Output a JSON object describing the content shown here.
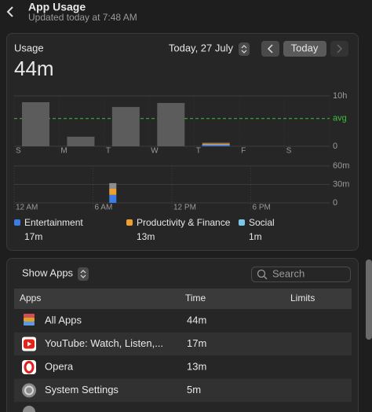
{
  "header": {
    "title": "App Usage",
    "subtitle": "Updated today at 7:48 AM"
  },
  "usage": {
    "label": "Usage",
    "total": "44m",
    "date": "Today, 27 July",
    "today_button": "Today",
    "weekly_chart": {
      "days": [
        "S",
        "M",
        "T",
        "W",
        "T",
        "F",
        "S"
      ],
      "values": [
        525,
        114,
        468,
        516,
        44,
        null,
        null
      ],
      "today_index": 4,
      "color": "#5c5c5c",
      "ylim": [
        0,
        600
      ],
      "yticks": [
        {
          "value": 600,
          "label": "10h"
        },
        0
      ],
      "average": {
        "value": 330,
        "label": "avg",
        "color": "#3fbf3f"
      }
    },
    "hourly_chart": {
      "xlim": [
        0,
        24
      ],
      "xticks": [
        {
          "value": 0,
          "label": "12 AM"
        },
        {
          "value": 6,
          "label": "6 AM"
        },
        {
          "value": 12,
          "label": "12 PM"
        },
        {
          "value": 18,
          "label": "6 PM"
        }
      ],
      "ylim": [
        0,
        60
      ],
      "yticks": [
        {
          "value": 60,
          "label": "60m"
        },
        {
          "value": 30,
          "label": "30m"
        },
        0
      ],
      "bars": [
        {
          "hour": 7,
          "segments": [
            {
              "color": "#3d7be6",
              "value": 13
            },
            {
              "color": "#f0a030",
              "value": 10
            },
            {
              "color": "#8e8e8e",
              "value": 9
            }
          ]
        }
      ]
    },
    "categories": [
      {
        "name": "Entertainment",
        "color": "#3d7be6",
        "minutes": 17,
        "label": "17m"
      },
      {
        "name": "Productivity & Finance",
        "color": "#f0a030",
        "minutes": 13,
        "label": "13m"
      },
      {
        "name": "Social",
        "color": "#7cc6e8",
        "minutes": 1,
        "label": "1m"
      }
    ]
  },
  "apps": {
    "filter": "Show Apps",
    "search_placeholder": "Search",
    "columns": [
      "Apps",
      "Time",
      "Limits"
    ],
    "rows": [
      {
        "name": "All Apps",
        "time": "44m"
      },
      {
        "name": "YouTube: Watch, Listen,...",
        "time": "17m"
      },
      {
        "name": "Opera",
        "time": "13m"
      },
      {
        "name": "System Settings",
        "time": "5m"
      }
    ]
  }
}
